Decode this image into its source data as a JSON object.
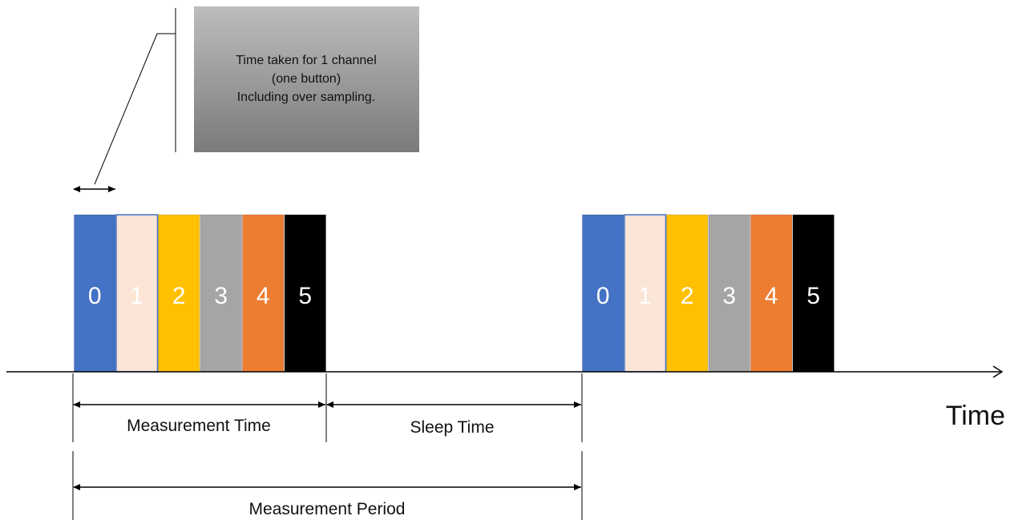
{
  "callout": {
    "lines": [
      "Time taken for 1 channel",
      "(one button)",
      "Including over sampling."
    ]
  },
  "channels": [
    {
      "label": "0",
      "color": "#4472C4",
      "text_color": "#ffffff"
    },
    {
      "label": "1",
      "color": "#FBE5D6",
      "text_color": "#ffffff"
    },
    {
      "label": "2",
      "color": "#FFC000",
      "text_color": "#ffffff"
    },
    {
      "label": "3",
      "color": "#A5A5A5",
      "text_color": "#ffffff"
    },
    {
      "label": "4",
      "color": "#ED7D31",
      "text_color": "#ffffff"
    },
    {
      "label": "5",
      "color": "#000000",
      "text_color": "#ffffff"
    }
  ],
  "labels": {
    "measurement_time": "Measurement Time",
    "sleep_time": "Sleep Time",
    "measurement_period": "Measurement Period",
    "axis": "Time"
  },
  "colors": {
    "callout_top": "#bdbdbd",
    "callout_bottom": "#7a7a7a",
    "line": "#000000"
  }
}
